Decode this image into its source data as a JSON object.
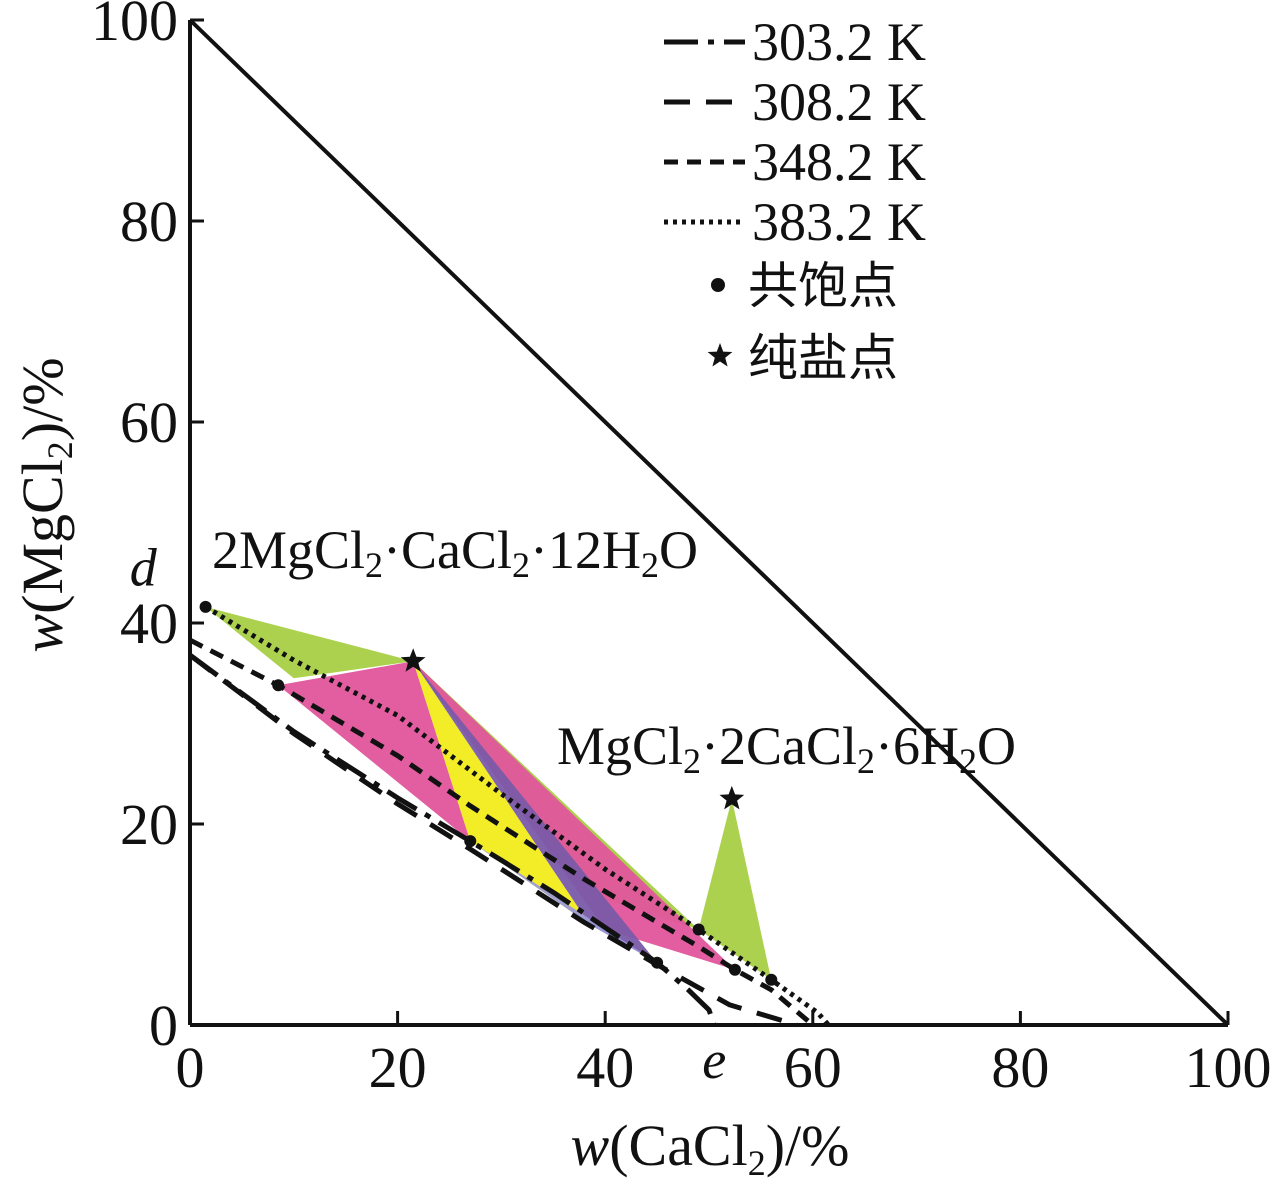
{
  "chart_data": {
    "type": "line",
    "xlabel": {
      "var": "w",
      "open": "(CaCl",
      "sub": "2",
      "close": ")/%"
    },
    "ylabel": {
      "var": "w",
      "open": "(MgCl",
      "sub": "2",
      "close": ")/%"
    },
    "xlim": [
      0,
      100
    ],
    "ylim": [
      0,
      100
    ],
    "xticks": [
      "0",
      "20",
      "40",
      "60",
      "80",
      "100"
    ],
    "yticks": [
      "0",
      "20",
      "40",
      "60",
      "80",
      "100"
    ],
    "grid": false,
    "legend_position": "top-right",
    "series": [
      {
        "name": "303.2 K",
        "style": "dashdot",
        "points": [
          [
            0,
            36.8
          ],
          [
            10,
            29.2
          ],
          [
            20,
            22.6
          ],
          [
            27,
            18.3
          ],
          [
            35,
            13.2
          ],
          [
            45,
            6.2
          ],
          [
            48,
            3.5
          ],
          [
            50,
            1.5
          ],
          [
            50.5,
            0
          ]
        ]
      },
      {
        "name": "308.2 K",
        "style": "dashed",
        "points": [
          [
            0,
            36.8
          ],
          [
            10,
            29.0
          ],
          [
            20,
            22.0
          ],
          [
            27,
            17.5
          ],
          [
            38,
            10.2
          ],
          [
            45,
            6.0
          ],
          [
            52,
            2.0
          ],
          [
            58.5,
            0
          ]
        ]
      },
      {
        "name": "348.2 K",
        "style": "shortdash",
        "points": [
          [
            0,
            38.3
          ],
          [
            8.5,
            33.8
          ],
          [
            20,
            26.8
          ],
          [
            27,
            21.8
          ],
          [
            38,
            14.5
          ],
          [
            49,
            7.8
          ],
          [
            52.5,
            5.5
          ],
          [
            56,
            3.5
          ],
          [
            60,
            0
          ]
        ]
      },
      {
        "name": "383.2 K",
        "style": "dotted",
        "points": [
          [
            1.5,
            41.6
          ],
          [
            10,
            36.3
          ],
          [
            20,
            30.8
          ],
          [
            30,
            23.0
          ],
          [
            40,
            15.5
          ],
          [
            49,
            9.5
          ],
          [
            56,
            4.5
          ],
          [
            60.5,
            1.2
          ],
          [
            61.5,
            0
          ]
        ]
      }
    ],
    "cosaturation_points": [
      [
        1.5,
        41.6
      ],
      [
        8.5,
        33.8
      ],
      [
        27,
        18.3
      ],
      [
        45,
        6.2
      ],
      [
        52.5,
        5.5
      ],
      [
        49,
        9.5
      ],
      [
        56,
        4.5
      ]
    ],
    "pure_salt_points": [
      {
        "label_parts": [
          "2MgCl",
          "2",
          "·CaCl",
          "2",
          "·12H",
          "2",
          "O"
        ],
        "x": 21.5,
        "y": 36.2
      },
      {
        "label_parts": [
          "MgCl",
          "2",
          "·2CaCl",
          "2",
          "·6H",
          "2",
          "O"
        ],
        "x": 52.2,
        "y": 22.5
      }
    ],
    "regions": [
      {
        "color": "#a8cf45",
        "points": [
          [
            1.5,
            41.6
          ],
          [
            21.5,
            36.2
          ],
          [
            10,
            34.5
          ]
        ]
      },
      {
        "color": "#a8cf45",
        "points": [
          [
            21.5,
            36.2
          ],
          [
            49,
            9.5
          ],
          [
            40,
            12.5
          ]
        ]
      },
      {
        "color": "#e0559b",
        "points": [
          [
            8.5,
            33.8
          ],
          [
            21.5,
            36.2
          ],
          [
            27,
            18.3
          ]
        ]
      },
      {
        "color": "#e0559b",
        "points": [
          [
            21.5,
            36.2
          ],
          [
            52.5,
            5.5
          ],
          [
            40,
            9.5
          ]
        ]
      },
      {
        "color": "#f2ec1c",
        "points": [
          [
            21.5,
            36.2
          ],
          [
            27,
            18.3
          ],
          [
            38.5,
            10.0
          ]
        ]
      },
      {
        "color": "#7a5aa8",
        "points": [
          [
            21.5,
            36.2
          ],
          [
            38.5,
            10.0
          ],
          [
            45,
            6.2
          ]
        ]
      },
      {
        "color": "#9a9ad8",
        "points": [
          [
            27,
            18.3
          ],
          [
            38.5,
            10.0
          ],
          [
            45,
            6.2
          ]
        ]
      },
      {
        "color": "#a8cf45",
        "points": [
          [
            49,
            9.5
          ],
          [
            52.2,
            22.5
          ],
          [
            56,
            4.5
          ]
        ]
      }
    ],
    "point_labels": [
      {
        "text": "d",
        "x": -4.5,
        "y": 45.5
      },
      {
        "text": "e",
        "x": 50.5,
        "y": -3.5
      }
    ],
    "legend": {
      "cosaturation_label": "共饱点",
      "pure_salt_label": "纯盐点"
    }
  }
}
